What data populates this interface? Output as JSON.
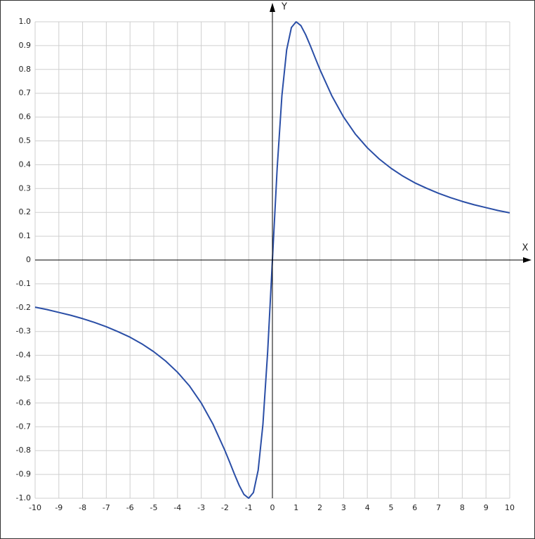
{
  "chart_data": {
    "type": "line",
    "x_label": "X",
    "y_label": "Y",
    "x": [
      -10,
      -9.5,
      -9,
      -8.5,
      -8,
      -7.5,
      -7,
      -6.5,
      -6,
      -5.5,
      -5,
      -4.5,
      -4,
      -3.5,
      -3,
      -2.5,
      -2,
      -1.8,
      -1.6,
      -1.4,
      -1.2,
      -1,
      -0.8,
      -0.6,
      -0.4,
      -0.2,
      0,
      0.2,
      0.4,
      0.6,
      0.8,
      1,
      1.2,
      1.4,
      1.6,
      1.8,
      2,
      2.5,
      3,
      3.5,
      4,
      4.5,
      5,
      5.5,
      6,
      6.5,
      7,
      7.5,
      8,
      8.5,
      9,
      9.5,
      10
    ],
    "series": [
      {
        "color": "#2a4ea6",
        "values": [
          -0.198,
          -0.208,
          -0.22,
          -0.232,
          -0.246,
          -0.262,
          -0.28,
          -0.301,
          -0.324,
          -0.352,
          -0.385,
          -0.424,
          -0.471,
          -0.528,
          -0.6,
          -0.69,
          -0.8,
          -0.849,
          -0.899,
          -0.946,
          -0.984,
          -1,
          -0.976,
          -0.882,
          -0.69,
          -0.385,
          0,
          0.385,
          0.69,
          0.882,
          0.976,
          1,
          0.984,
          0.946,
          0.899,
          0.849,
          0.8,
          0.69,
          0.6,
          0.528,
          0.471,
          0.424,
          0.385,
          0.352,
          0.324,
          0.301,
          0.28,
          0.262,
          0.246,
          0.232,
          0.22,
          0.208,
          0.198
        ]
      }
    ],
    "xlim": [
      -10,
      10
    ],
    "ylim": [
      -1,
      1
    ],
    "xticks": [
      -10,
      -9,
      -8,
      -7,
      -6,
      -5,
      -4,
      -3,
      -2,
      -1,
      0,
      1,
      2,
      3,
      4,
      5,
      6,
      7,
      8,
      9,
      10
    ],
    "yticks": [
      {
        "value": -1,
        "label": "-1.0"
      },
      -0.9,
      -0.8,
      -0.7,
      -0.6,
      -0.5,
      -0.4,
      -0.3,
      -0.2,
      -0.1,
      0,
      0.1,
      0.2,
      0.3,
      0.4,
      0.5,
      0.6,
      0.7,
      0.8,
      0.9,
      {
        "value": 1,
        "label": "1.0"
      }
    ],
    "grid": true
  }
}
